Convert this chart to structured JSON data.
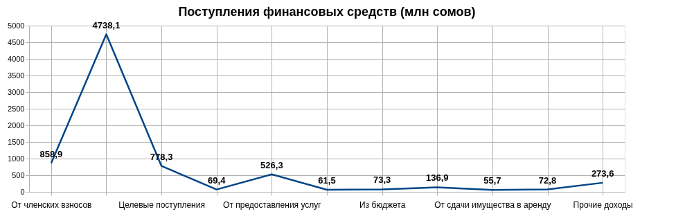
{
  "chart_data": {
    "type": "line",
    "title": "Поступления финансовых средств (млн сомов)",
    "categories": [
      "От членских взносов",
      null,
      "Целевые поступления",
      null,
      "От предоставления услуг",
      null,
      "Из бюджета",
      null,
      "От сдачи имущества в аренду",
      null,
      "Прочие доходы"
    ],
    "series": [
      {
        "color": "#004586",
        "values": [
          858.9,
          4738.1,
          778.3,
          69.4,
          526.3,
          61.5,
          73.3,
          136.9,
          55.7,
          72.8,
          273.6
        ],
        "value_labels": [
          "858,9",
          "4738,1",
          "778,3",
          "69,4",
          "526,3",
          "61,5",
          "73,3",
          "136,9",
          "55,7",
          "72,8",
          "273,6"
        ]
      }
    ],
    "ylim": [
      0,
      5000
    ],
    "yticks": [
      0,
      500,
      1000,
      1500,
      2000,
      2500,
      3000,
      3500,
      4000,
      4500,
      5000
    ],
    "grid": true,
    "marker": "none",
    "line_style": "solid"
  }
}
